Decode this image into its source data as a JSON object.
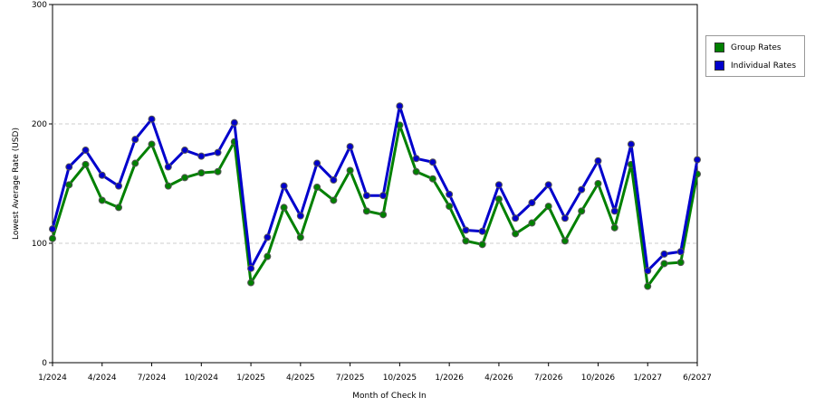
{
  "chart_data": {
    "type": "line",
    "x_label": "Month of Check In",
    "y_label": "Lowest Average Rate (USD)",
    "categories": [
      "1/2024",
      null,
      null,
      "4/2024",
      null,
      null,
      "7/2024",
      null,
      null,
      "10/2024",
      null,
      null,
      "1/2025",
      null,
      null,
      "4/2025",
      null,
      null,
      "7/2025",
      null,
      null,
      "10/2025",
      null,
      null,
      "1/2026",
      null,
      null,
      "4/2026",
      null,
      null,
      "7/2026",
      null,
      null,
      "10/2026",
      null,
      null,
      "1/2027",
      null,
      null,
      "6/2027"
    ],
    "series": [
      {
        "name": "Group Rates",
        "color": "#008000",
        "values": [
          104,
          149,
          166,
          136,
          130,
          167,
          183,
          148,
          155,
          159,
          160,
          185,
          67,
          89,
          130,
          105,
          147,
          136,
          161,
          127,
          124,
          199,
          160,
          154,
          131,
          102,
          99,
          137,
          108,
          117,
          131,
          102,
          127,
          150,
          113,
          166,
          64,
          83,
          84,
          158
        ]
      },
      {
        "name": "Individual Rates",
        "color": "#0000cc",
        "values": [
          112,
          164,
          178,
          157,
          148,
          187,
          204,
          164,
          178,
          173,
          176,
          201,
          79,
          105,
          148,
          123,
          167,
          153,
          181,
          140,
          140,
          215,
          171,
          168,
          141,
          111,
          110,
          149,
          121,
          134,
          149,
          121,
          145,
          169,
          127,
          183,
          77,
          91,
          93,
          170
        ]
      }
    ],
    "ylim": [
      0,
      300
    ],
    "yticks": [
      0,
      100,
      200,
      300
    ],
    "grid": true
  }
}
